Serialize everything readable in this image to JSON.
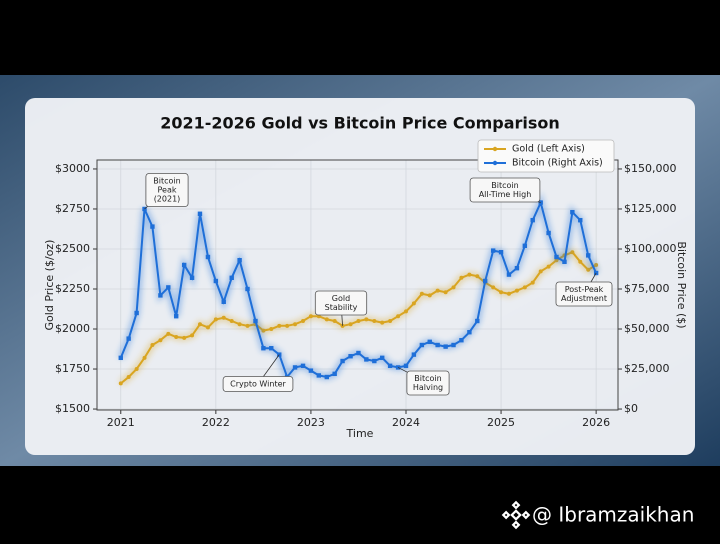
{
  "chart_data": {
    "type": "line",
    "title": "2021-2026 Gold vs Bitcoin Price Comparison",
    "x_label": "Time",
    "y_label": "Gold Price ($/oz)",
    "y2_label": "Bitcoin Price ($)",
    "x": [
      2021.0,
      2021.083,
      2021.167,
      2021.25,
      2021.333,
      2021.417,
      2021.5,
      2021.583,
      2021.667,
      2021.75,
      2021.833,
      2021.917,
      2022.0,
      2022.083,
      2022.167,
      2022.25,
      2022.333,
      2022.417,
      2022.5,
      2022.583,
      2022.667,
      2022.75,
      2022.833,
      2022.917,
      2023.0,
      2023.083,
      2023.167,
      2023.25,
      2023.333,
      2023.417,
      2023.5,
      2023.583,
      2023.667,
      2023.75,
      2023.833,
      2023.917,
      2024.0,
      2024.083,
      2024.167,
      2024.25,
      2024.333,
      2024.417,
      2024.5,
      2024.583,
      2024.667,
      2024.75,
      2024.833,
      2024.917,
      2025.0,
      2025.083,
      2025.167,
      2025.25,
      2025.333,
      2025.417,
      2025.5,
      2025.583,
      2025.667,
      2025.75,
      2025.833,
      2025.917,
      2026.0
    ],
    "series": [
      {
        "name": "Gold (Left Axis)",
        "color": "#d9a521",
        "axis": "y",
        "values": [
          1660,
          1700,
          1750,
          1820,
          1900,
          1930,
          1970,
          1950,
          1945,
          1960,
          2030,
          2010,
          2060,
          2070,
          2050,
          2030,
          2020,
          2030,
          1990,
          2000,
          2020,
          2020,
          2030,
          2050,
          2080,
          2080,
          2060,
          2050,
          2020,
          2030,
          2050,
          2060,
          2050,
          2040,
          2050,
          2080,
          2110,
          2160,
          2220,
          2210,
          2240,
          2230,
          2260,
          2320,
          2340,
          2330,
          2290,
          2260,
          2230,
          2220,
          2240,
          2260,
          2290,
          2360,
          2390,
          2430,
          2460,
          2480,
          2420,
          2370,
          2400
        ]
      },
      {
        "name": "Bitcoin (Right Axis)",
        "color": "#1f6fd8",
        "axis": "y2",
        "values": [
          32000,
          44000,
          60000,
          125000,
          114000,
          71000,
          76000,
          58000,
          90000,
          82000,
          122000,
          95000,
          80000,
          67000,
          82000,
          93000,
          75000,
          55000,
          38000,
          38000,
          34000,
          20000,
          26000,
          27000,
          24000,
          21000,
          20000,
          22000,
          30000,
          33000,
          35000,
          31000,
          30000,
          32000,
          27000,
          26000,
          27000,
          34000,
          40000,
          42000,
          40000,
          39000,
          40000,
          43000,
          48000,
          55000,
          80000,
          99000,
          98000,
          84000,
          88000,
          102000,
          118000,
          129000,
          110000,
          95000,
          92000,
          123000,
          118000,
          96000,
          85000
        ]
      }
    ],
    "xlim": [
      2020.75,
      2026.23
    ],
    "xticks": [
      2021,
      2022,
      2023,
      2024,
      2025,
      2026
    ],
    "ylim": [
      1494,
      3056
    ],
    "yticks": [
      {
        "value": 1500,
        "label": "$1500"
      },
      {
        "value": 1750,
        "label": "$1750"
      },
      {
        "value": 2000,
        "label": "$2000"
      },
      {
        "value": 2250,
        "label": "$2250"
      },
      {
        "value": 2500,
        "label": "$2500"
      },
      {
        "value": 2750,
        "label": "$2750"
      },
      {
        "value": 3000,
        "label": "$3000"
      }
    ],
    "y2lim": [
      -600,
      155600
    ],
    "y2ticks": [
      {
        "value": 0,
        "label": "$0"
      },
      {
        "value": 25000,
        "label": "$25,000"
      },
      {
        "value": 50000,
        "label": "$50,000"
      },
      {
        "value": 75000,
        "label": "$75,000"
      },
      {
        "value": 100000,
        "label": "$100,000"
      },
      {
        "value": 125000,
        "label": "$125,000"
      },
      {
        "value": 150000,
        "label": "$150,000"
      }
    ],
    "grid": true,
    "legend": "upper right",
    "annotations": [
      {
        "text": [
          "Bitcoin",
          "Peak",
          "(2021)"
        ]
      },
      {
        "text": [
          "Crypto Winter"
        ]
      },
      {
        "text": [
          "Gold",
          "Stability"
        ]
      },
      {
        "text": [
          "Bitcoin",
          "Halving"
        ]
      },
      {
        "text": [
          "Bitcoin",
          "All-Time High"
        ]
      },
      {
        "text": [
          "Post-Peak",
          "Adjustment"
        ]
      }
    ]
  },
  "watermark": "@ Ibramzaikhan"
}
